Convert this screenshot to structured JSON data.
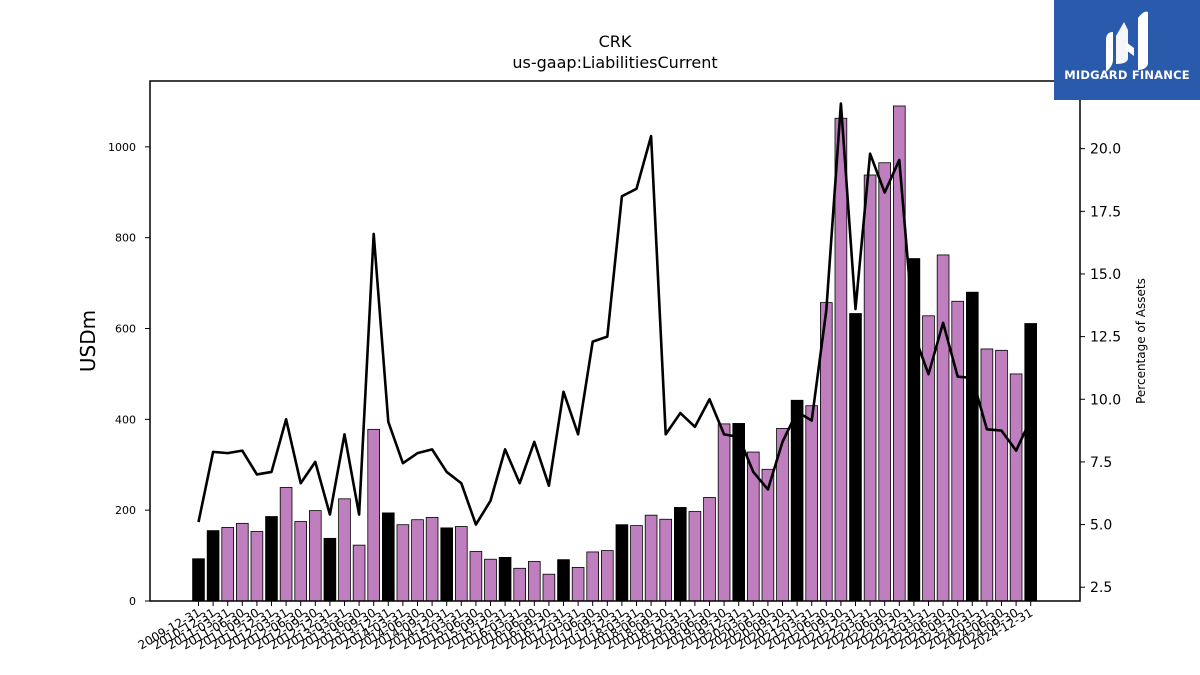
{
  "chart_data": {
    "type": "bar+line",
    "title": "CRK",
    "subtitle": "us-gaap:LiabilitiesCurrent",
    "ylabel": "USDm",
    "y2label": "Percentage of Assets",
    "ylim": [
      0,
      1145
    ],
    "y2lim": [
      1.95,
      22.7
    ],
    "yticks": [
      0,
      200,
      400,
      600,
      800,
      1000
    ],
    "y2ticks": [
      "2.5",
      "5.0",
      "7.5",
      "10.0",
      "12.5",
      "15.0",
      "17.5",
      "20.0"
    ],
    "categories": [
      "2009-12-31",
      "2010-12-31",
      "2011-03-31",
      "2011-06-30",
      "2011-09-30",
      "2011-12-31",
      "2012-03-31",
      "2012-06-30",
      "2012-09-30",
      "2012-12-31",
      "2013-03-31",
      "2013-06-30",
      "2013-09-30",
      "2013-12-31",
      "2014-03-31",
      "2014-06-30",
      "2014-09-30",
      "2014-12-31",
      "2015-03-31",
      "2015-06-30",
      "2015-09-30",
      "2015-12-31",
      "2016-03-31",
      "2016-06-30",
      "2016-09-30",
      "2016-12-31",
      "2017-03-31",
      "2017-06-30",
      "2017-09-30",
      "2017-12-31",
      "2018-03-31",
      "2018-06-30",
      "2018-09-30",
      "2018-12-31",
      "2019-03-31",
      "2019-06-30",
      "2019-09-30",
      "2019-12-31",
      "2020-03-31",
      "2020-06-30",
      "2020-09-30",
      "2020-12-31",
      "2021-03-31",
      "2021-06-30",
      "2021-09-30",
      "2021-12-31",
      "2022-03-31",
      "2022-06-30",
      "2022-09-30",
      "2022-12-31",
      "2023-03-31",
      "2023-06-30",
      "2023-09-30",
      "2023-12-31",
      "2024-03-31",
      "2024-06-30",
      "2024-09-30",
      "2024-12-31"
    ],
    "series": [
      {
        "type": "bar",
        "values": [
          93,
          155,
          162,
          171,
          153,
          186,
          250,
          175,
          199,
          138,
          225,
          123,
          378,
          194,
          168,
          179,
          184,
          161,
          164,
          109,
          92,
          96,
          72,
          87,
          59,
          91,
          74,
          108,
          111,
          168,
          166,
          189,
          180,
          206,
          197,
          228,
          390,
          391,
          328,
          290,
          380,
          442,
          430,
          657,
          1063,
          633,
          938,
          965,
          1090,
          754,
          628,
          762,
          660,
          680,
          555,
          552,
          500,
          611
        ]
      },
      {
        "type": "line",
        "axis": "right",
        "color": "#000000",
        "values": [
          5.1,
          7.9,
          7.85,
          7.95,
          7.0,
          7.1,
          9.2,
          6.65,
          7.5,
          5.4,
          8.6,
          5.4,
          16.6,
          9.1,
          7.45,
          7.85,
          8.0,
          7.1,
          6.65,
          5.0,
          5.95,
          8.0,
          6.65,
          8.3,
          6.55,
          10.3,
          8.6,
          12.3,
          12.5,
          18.1,
          18.4,
          20.5,
          8.6,
          9.45,
          8.9,
          10.0,
          8.6,
          8.5,
          7.1,
          6.4,
          8.3,
          9.5,
          9.15,
          13.55,
          21.8,
          13.6,
          19.8,
          18.25,
          19.55,
          12.6,
          11.0,
          13.05,
          10.9,
          10.85,
          8.8,
          8.75,
          7.95,
          9.2
        ]
      }
    ],
    "bar_colors": [
      "#000000",
      "#000000",
      "#bf7fbf",
      "#bf7fbf",
      "#bf7fbf",
      "#000000",
      "#bf7fbf",
      "#bf7fbf",
      "#bf7fbf",
      "#000000",
      "#bf7fbf",
      "#bf7fbf",
      "#bf7fbf",
      "#000000",
      "#bf7fbf",
      "#bf7fbf",
      "#bf7fbf",
      "#000000",
      "#bf7fbf",
      "#bf7fbf",
      "#bf7fbf",
      "#000000",
      "#bf7fbf",
      "#bf7fbf",
      "#bf7fbf",
      "#000000",
      "#bf7fbf",
      "#bf7fbf",
      "#bf7fbf",
      "#000000",
      "#bf7fbf",
      "#bf7fbf",
      "#bf7fbf",
      "#000000",
      "#bf7fbf",
      "#bf7fbf",
      "#bf7fbf",
      "#000000",
      "#bf7fbf",
      "#bf7fbf",
      "#bf7fbf",
      "#000000",
      "#bf7fbf",
      "#bf7fbf",
      "#bf7fbf",
      "#000000",
      "#bf7fbf",
      "#bf7fbf",
      "#bf7fbf",
      "#000000",
      "#bf7fbf",
      "#bf7fbf",
      "#bf7fbf",
      "#000000",
      "#bf7fbf",
      "#bf7fbf",
      "#bf7fbf",
      "#000000"
    ],
    "grid": false
  },
  "logo": {
    "text": "MIDGARD FINANCE",
    "background": "#2a5aac",
    "foreground": "#ffffff"
  }
}
